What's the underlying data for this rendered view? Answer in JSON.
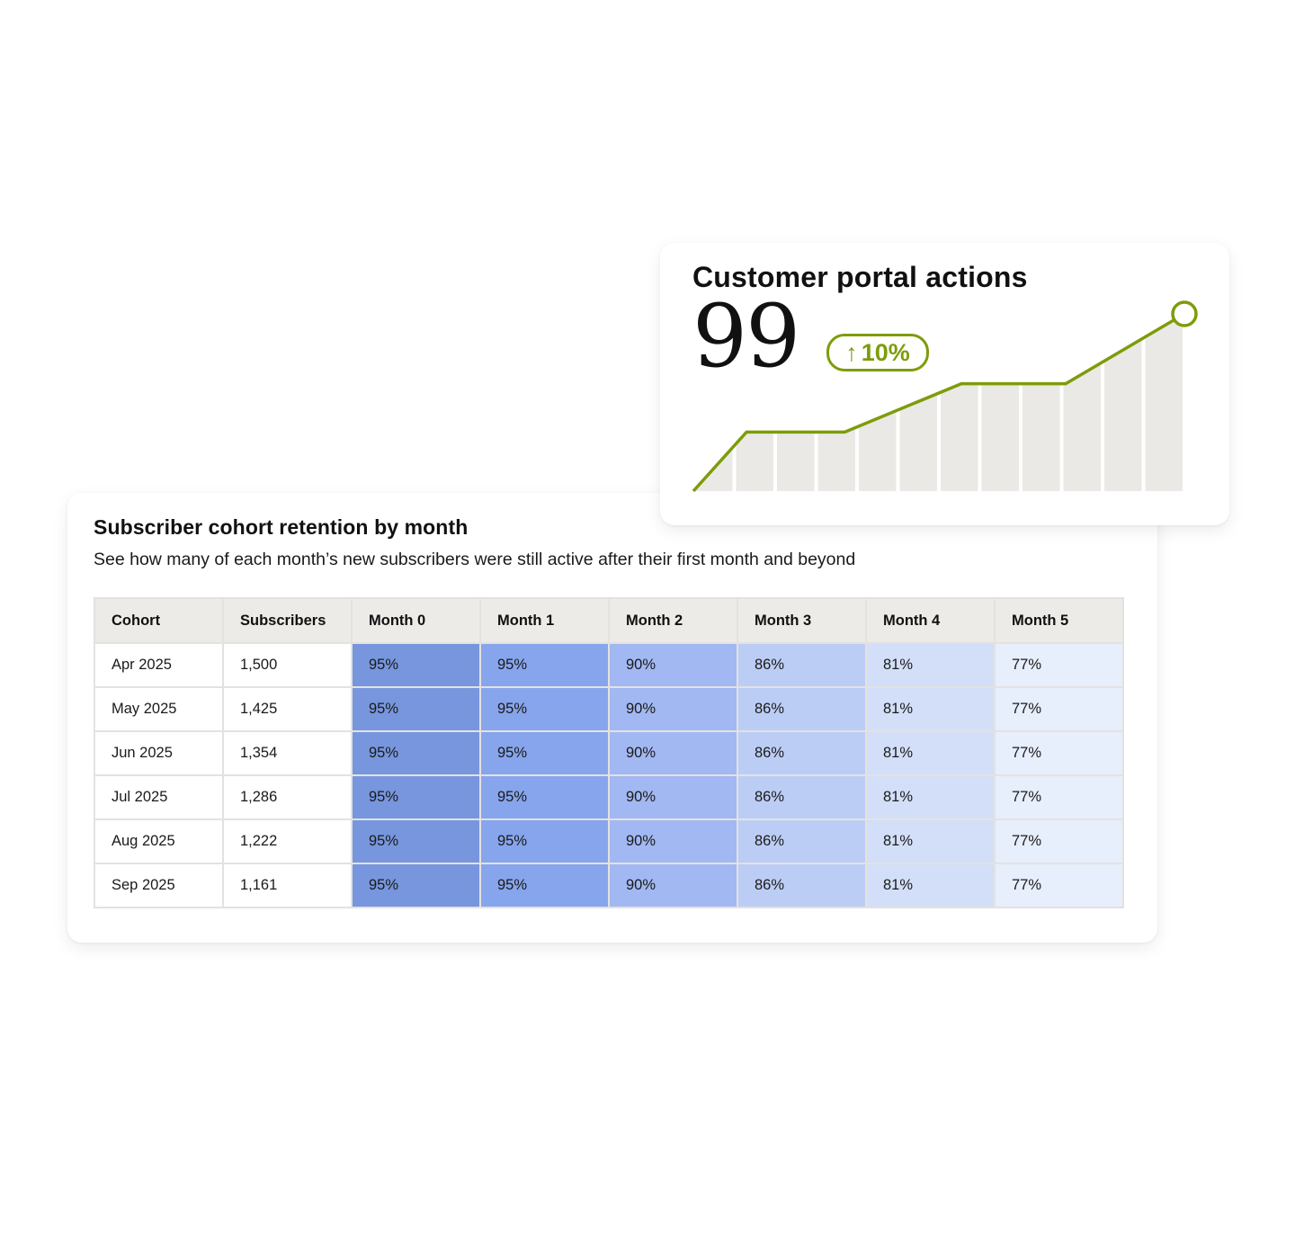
{
  "kpi": {
    "title": "Customer portal actions",
    "value": "99",
    "change": "10%",
    "change_icon": "arrow-up-icon",
    "accent_color": "#7d9c0a",
    "bar_color": "#ebe9e6"
  },
  "chart_data": {
    "type": "area",
    "title": "",
    "bars": 12,
    "series": [
      {
        "x": [
          0,
          1.3,
          3.7,
          6.55,
          9.1,
          12
        ],
        "values": [
          0,
          33,
          33,
          60,
          60,
          99
        ]
      }
    ],
    "end_marker": "circle"
  },
  "cohort": {
    "title": "Subscriber cohort retention by month",
    "subtitle": "See how many of each month’s new subscribers were still active after their first month and beyond",
    "columns": [
      "Cohort",
      "Subscribers",
      "Month 0",
      "Month 1",
      "Month 2",
      "Month 3",
      "Month 4",
      "Month 5"
    ],
    "month_colors": [
      "#7796dd",
      "#87a5ec",
      "#a2b8f2",
      "#bccdf5",
      "#d3dff8",
      "#e7eefc"
    ],
    "rows": [
      {
        "cohort": "Apr 2025",
        "subscribers": "1,500",
        "months": [
          "95%",
          "95%",
          "90%",
          "86%",
          "81%",
          "77%"
        ]
      },
      {
        "cohort": "May 2025",
        "subscribers": "1,425",
        "months": [
          "95%",
          "95%",
          "90%",
          "86%",
          "81%",
          "77%"
        ]
      },
      {
        "cohort": "Jun 2025",
        "subscribers": "1,354",
        "months": [
          "95%",
          "95%",
          "90%",
          "86%",
          "81%",
          "77%"
        ]
      },
      {
        "cohort": "Jul 2025",
        "subscribers": "1,286",
        "months": [
          "95%",
          "95%",
          "90%",
          "86%",
          "81%",
          "77%"
        ]
      },
      {
        "cohort": "Aug 2025",
        "subscribers": "1,222",
        "months": [
          "95%",
          "95%",
          "90%",
          "86%",
          "81%",
          "77%"
        ]
      },
      {
        "cohort": "Sep 2025",
        "subscribers": "1,161",
        "months": [
          "95%",
          "95%",
          "90%",
          "86%",
          "81%",
          "77%"
        ]
      }
    ]
  }
}
